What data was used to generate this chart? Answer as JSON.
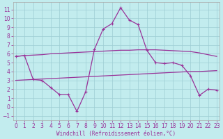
{
  "xlabel": "Windchill (Refroidissement éolien,°C)",
  "background_color": "#c2ecee",
  "grid_color": "#9ecdd4",
  "line_color": "#993399",
  "xlim": [
    -0.3,
    23.3
  ],
  "ylim": [
    -1.5,
    11.8
  ],
  "xticks": [
    0,
    1,
    2,
    3,
    4,
    5,
    6,
    7,
    8,
    9,
    10,
    11,
    12,
    13,
    14,
    15,
    16,
    17,
    18,
    19,
    20,
    21,
    22,
    23
  ],
  "yticks": [
    -1,
    0,
    1,
    2,
    3,
    4,
    5,
    6,
    7,
    8,
    9,
    10,
    11
  ],
  "main_x": [
    0,
    1,
    2,
    3,
    4,
    5,
    6,
    7,
    8,
    9,
    10,
    11,
    12,
    13,
    14,
    15,
    16,
    17,
    18,
    19,
    20,
    21,
    22,
    23
  ],
  "main_y": [
    5.7,
    5.8,
    3.1,
    3.0,
    2.2,
    1.4,
    1.4,
    -0.5,
    1.7,
    6.5,
    8.8,
    9.4,
    11.2,
    9.8,
    9.3,
    6.4,
    5.0,
    4.9,
    5.0,
    4.7,
    3.5,
    1.3,
    2.0,
    1.9
  ],
  "upper_x": [
    0,
    1,
    2,
    3,
    4,
    5,
    6,
    7,
    8,
    9,
    10,
    11,
    12,
    13,
    14,
    15,
    16,
    17,
    18,
    19,
    20,
    21,
    22,
    23
  ],
  "upper_y": [
    5.7,
    5.8,
    5.85,
    5.9,
    6.0,
    6.05,
    6.1,
    6.15,
    6.2,
    6.25,
    6.3,
    6.35,
    6.4,
    6.4,
    6.45,
    6.45,
    6.45,
    6.4,
    6.35,
    6.3,
    6.25,
    6.1,
    5.9,
    5.7
  ],
  "lower_x": [
    0,
    1,
    2,
    3,
    4,
    5,
    6,
    7,
    8,
    9,
    10,
    11,
    12,
    13,
    14,
    15,
    16,
    17,
    18,
    19,
    20,
    21,
    22,
    23
  ],
  "lower_y": [
    3.0,
    3.05,
    3.1,
    3.15,
    3.2,
    3.25,
    3.3,
    3.35,
    3.4,
    3.45,
    3.5,
    3.55,
    3.6,
    3.65,
    3.7,
    3.75,
    3.8,
    3.85,
    3.9,
    3.95,
    4.0,
    4.0,
    4.05,
    4.1
  ],
  "tick_fontsize": 5.5,
  "xlabel_fontsize": 5.5
}
